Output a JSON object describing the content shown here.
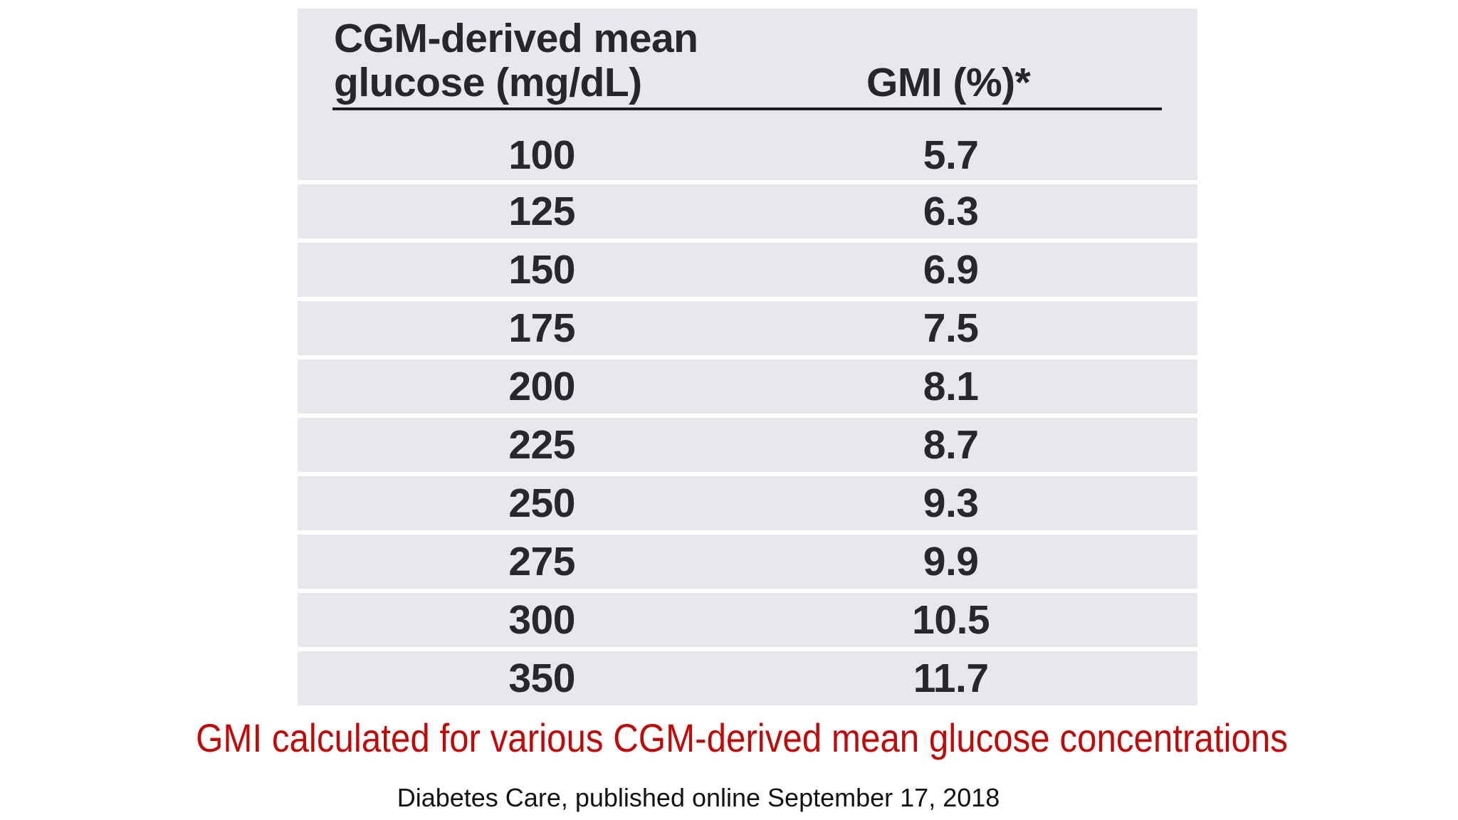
{
  "table": {
    "header": {
      "col1_line1": "CGM-derived mean",
      "col1_line2": "glucose (mg/dL)",
      "col2": "GMI (%)*"
    },
    "rows": [
      {
        "glucose": "100",
        "gmi": "5.7"
      },
      {
        "glucose": "125",
        "gmi": "6.3"
      },
      {
        "glucose": "150",
        "gmi": "6.9"
      },
      {
        "glucose": "175",
        "gmi": "7.5"
      },
      {
        "glucose": "200",
        "gmi": "8.1"
      },
      {
        "glucose": "225",
        "gmi": "8.7"
      },
      {
        "glucose": "250",
        "gmi": "9.3"
      },
      {
        "glucose": "275",
        "gmi": "9.9"
      },
      {
        "glucose": "300",
        "gmi": "10.5"
      },
      {
        "glucose": "350",
        "gmi": "11.7"
      }
    ]
  },
  "caption": "GMI calculated for various CGM-derived mean glucose concentrations",
  "source": "Diabetes Care, published online September 17, 2018",
  "colors": {
    "row_background": "#e8e7eb",
    "row_separator": "#ffffff",
    "header_underline": "#1d1d27",
    "table_text": "#27272d",
    "caption_text": "#c00a0a",
    "source_text": "#121212",
    "page_background": "#ffffff"
  },
  "chart_data": {
    "type": "table",
    "columns": [
      "CGM-derived mean glucose (mg/dL)",
      "GMI (%)*"
    ],
    "rows": [
      [
        100,
        5.7
      ],
      [
        125,
        6.3
      ],
      [
        150,
        6.9
      ],
      [
        175,
        7.5
      ],
      [
        200,
        8.1
      ],
      [
        225,
        8.7
      ],
      [
        250,
        9.3
      ],
      [
        275,
        9.9
      ],
      [
        300,
        10.5
      ],
      [
        350,
        11.7
      ]
    ],
    "title": "GMI calculated for various CGM-derived mean glucose concentrations",
    "source": "Diabetes Care, published online September 17, 2018"
  }
}
